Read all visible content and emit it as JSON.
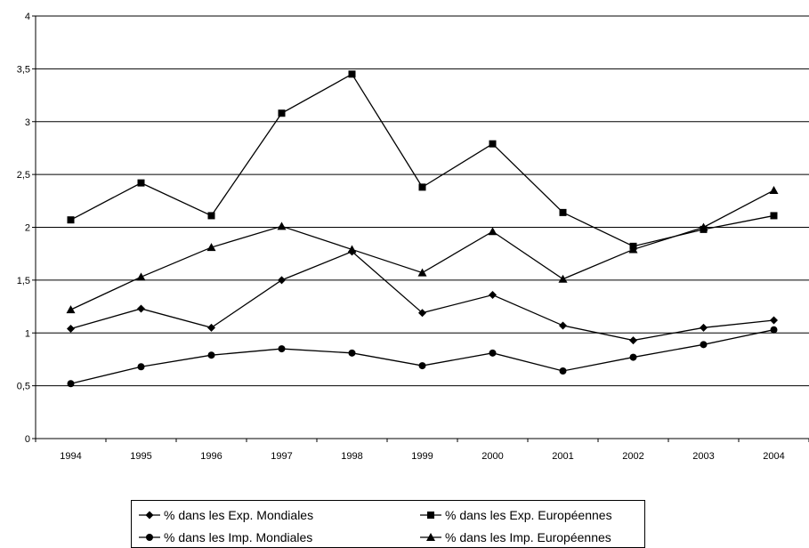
{
  "chart_data": {
    "type": "line",
    "title": "",
    "xlabel": "",
    "ylabel": "",
    "categories": [
      "1994",
      "1995",
      "1996",
      "1997",
      "1998",
      "1999",
      "2000",
      "2001",
      "2002",
      "2003",
      "2004"
    ],
    "ylim": [
      0,
      4
    ],
    "yticks": [
      0,
      0.5,
      1,
      1.5,
      2,
      2.5,
      3,
      3.5,
      4
    ],
    "ytick_labels": [
      "0",
      "0,5",
      "1",
      "1,5",
      "2",
      "2,5",
      "3",
      "3,5",
      "4"
    ],
    "grid": "horizontal",
    "legend_position": "bottom",
    "series": [
      {
        "name": "% dans les Exp. Mondiales",
        "marker": "diamond",
        "values": [
          1.04,
          1.23,
          1.05,
          1.5,
          1.77,
          1.19,
          1.36,
          1.07,
          0.93,
          1.05,
          1.12
        ]
      },
      {
        "name": "% dans les Exp. Européennes",
        "marker": "square",
        "values": [
          2.07,
          2.42,
          2.11,
          3.08,
          3.45,
          2.38,
          2.79,
          2.14,
          1.82,
          1.98,
          2.11
        ]
      },
      {
        "name": "% dans les Imp. Mondiales",
        "marker": "circle",
        "values": [
          0.52,
          0.68,
          0.79,
          0.85,
          0.81,
          0.69,
          0.81,
          0.64,
          0.77,
          0.89,
          1.03
        ]
      },
      {
        "name": "% dans les Imp. Européennes",
        "marker": "triangle",
        "values": [
          1.22,
          1.53,
          1.81,
          2.01,
          1.79,
          1.57,
          1.96,
          1.51,
          1.79,
          2.0,
          2.35
        ]
      }
    ],
    "colors": {
      "line": "#000000",
      "grid": "#000000",
      "background": "#ffffff"
    }
  }
}
